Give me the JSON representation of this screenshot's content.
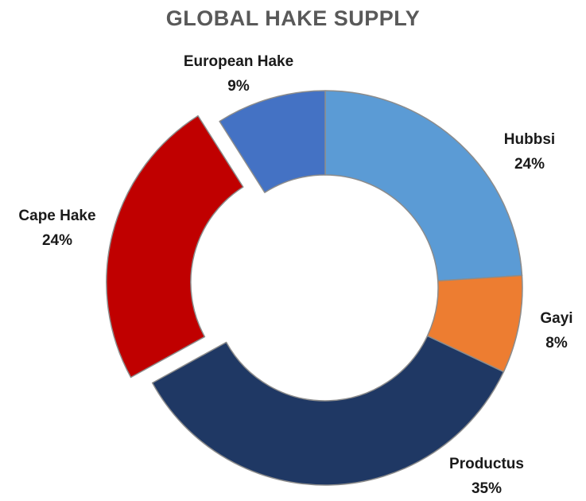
{
  "chart_data": {
    "type": "pie",
    "title": "GLOBAL HAKE SUPPLY",
    "slices": [
      {
        "label": "Hubbsi",
        "value": 24,
        "display": "24%",
        "color": "#5b9bd5"
      },
      {
        "label": "Gayi",
        "value": 8,
        "display": "8%",
        "color": "#ed7d31"
      },
      {
        "label": "Productus",
        "value": 35,
        "display": "35%",
        "color": "#1f3864"
      },
      {
        "label": "Cape Hake",
        "value": 24,
        "display": "24%",
        "color": "#c00000",
        "exploded": true
      },
      {
        "label": "European Hake",
        "value": 9,
        "display": "9%",
        "color": "#4472c4"
      }
    ]
  }
}
